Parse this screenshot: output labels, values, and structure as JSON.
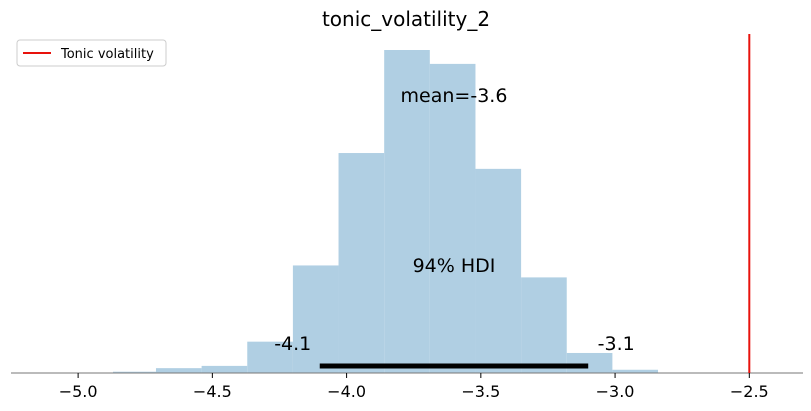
{
  "chart_data": {
    "type": "bar",
    "title": "tonic_volatility_2",
    "xlabel": "",
    "ylabel": "",
    "xlim": [
      -5.25,
      -2.3
    ],
    "ylim": [
      0,
      1.0
    ],
    "bar_color": "#b0cfe3",
    "bins": [
      {
        "x0": -4.87,
        "x1": -4.71,
        "value": 0.004
      },
      {
        "x0": -4.71,
        "x1": -4.54,
        "value": 0.015
      },
      {
        "x0": -4.54,
        "x1": -4.37,
        "value": 0.022
      },
      {
        "x0": -4.37,
        "x1": -4.2,
        "value": 0.097
      },
      {
        "x0": -4.2,
        "x1": -4.03,
        "value": 0.333
      },
      {
        "x0": -4.03,
        "x1": -3.86,
        "value": 0.681
      },
      {
        "x0": -3.86,
        "x1": -3.69,
        "value": 1.0
      },
      {
        "x0": -3.69,
        "x1": -3.52,
        "value": 0.957
      },
      {
        "x0": -3.52,
        "x1": -3.35,
        "value": 0.632
      },
      {
        "x0": -3.35,
        "x1": -3.18,
        "value": 0.296
      },
      {
        "x0": -3.18,
        "x1": -3.01,
        "value": 0.062
      },
      {
        "x0": -3.01,
        "x1": -2.84,
        "value": 0.01
      }
    ],
    "x_ticks": [
      -5.0,
      -4.5,
      -4.0,
      -3.5,
      -3.0,
      -2.5
    ],
    "x_tick_labels": [
      "−5.0",
      "−4.5",
      "−4.0",
      "−3.5",
      "−3.0",
      "−2.5"
    ],
    "mean_label": "mean=-3.6",
    "mean_value": -3.6,
    "hdi": {
      "label": "94% HDI",
      "low": -4.1,
      "high": -3.1,
      "low_label": "-4.1",
      "high_label": "-3.1"
    },
    "reference_line": {
      "value": -2.5,
      "color": "#e8120c",
      "name": "Tonic volatility"
    },
    "legend": {
      "entries": [
        "Tonic volatility"
      ],
      "placement": "top-left"
    }
  }
}
